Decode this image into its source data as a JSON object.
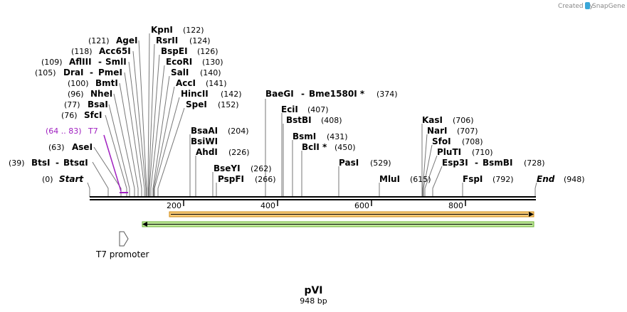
{
  "watermark": {
    "created_by": "Created by",
    "brand": "SnapGene"
  },
  "plasmid": {
    "name": "pVI",
    "length_label": "948 bp",
    "length": 948
  },
  "map_ends": {
    "start_label": "Start",
    "start_pos": "(0)",
    "end_label": "End",
    "end_pos": "(948)"
  },
  "ruler_ticks": [
    "200",
    "400",
    "600",
    "800"
  ],
  "primer": {
    "range": "(64 .. 83)",
    "name": "T7"
  },
  "feature": {
    "name": "T7 promoter"
  },
  "left_sites": [
    {
      "pos": "(121)",
      "name": "AgeI"
    },
    {
      "pos": "(118)",
      "name": "Acc65I"
    },
    {
      "pos": "(109)",
      "name": "AflIII",
      "sep": "-",
      "name2": "SmlI"
    },
    {
      "pos": "(105)",
      "name": "DraI",
      "sep": "-",
      "name2": "PmeI"
    },
    {
      "pos": "(100)",
      "name": "BmtI"
    },
    {
      "pos": "(96)",
      "name": "NheI"
    },
    {
      "pos": "(77)",
      "name": "BsaI"
    },
    {
      "pos": "(76)",
      "name": "SfcI"
    },
    {
      "pos": "(63)",
      "name": "AseI"
    },
    {
      "pos": "(39)",
      "name": "BtsI",
      "sep": "-",
      "name2": "BtsαI"
    }
  ],
  "right_sites": [
    {
      "name": "KpnI",
      "pos": "(122)"
    },
    {
      "name": "RsrII",
      "pos": "(124)"
    },
    {
      "name": "BspEI",
      "pos": "(126)"
    },
    {
      "name": "EcoRI",
      "pos": "(130)"
    },
    {
      "name": "SalI",
      "pos": "(140)"
    },
    {
      "name": "AccI",
      "pos": "(141)"
    },
    {
      "name": "HincII",
      "pos": "(142)"
    },
    {
      "name": "SpeI",
      "pos": "(152)"
    },
    {
      "name": "BsaAI",
      "pos": "(204)"
    },
    {
      "name": "BsiWI",
      "pos": ""
    },
    {
      "name": "AhdI",
      "pos": "(226)"
    },
    {
      "name": "BseYI",
      "pos": "(262)"
    },
    {
      "name": "PspFI",
      "pos": "(266)"
    },
    {
      "name": "BaeGI",
      "sep": "-",
      "name2": "Bme1580I *",
      "pos": "(374)"
    },
    {
      "name": "EciI",
      "pos": "(407)"
    },
    {
      "name": "BstBI",
      "pos": "(408)"
    },
    {
      "name": "BsmI",
      "pos": "(431)"
    },
    {
      "name": "BclI *",
      "pos": "(450)"
    },
    {
      "name": "PasI",
      "pos": "(529)"
    },
    {
      "name": "MluI",
      "pos": "(615)"
    },
    {
      "name": "KasI",
      "pos": "(706)"
    },
    {
      "name": "NarI",
      "pos": "(707)"
    },
    {
      "name": "SfoI",
      "pos": "(708)"
    },
    {
      "name": "PluTI",
      "pos": "(710)"
    },
    {
      "name": "Esp3I",
      "sep": "-",
      "name2": "BsmBI",
      "pos": "(728)"
    },
    {
      "name": "FspI",
      "pos": "(792)"
    }
  ],
  "colors": {
    "primer": "#a020c0",
    "orange_feature": "#f0a020",
    "green_feature": "#8cd050"
  }
}
